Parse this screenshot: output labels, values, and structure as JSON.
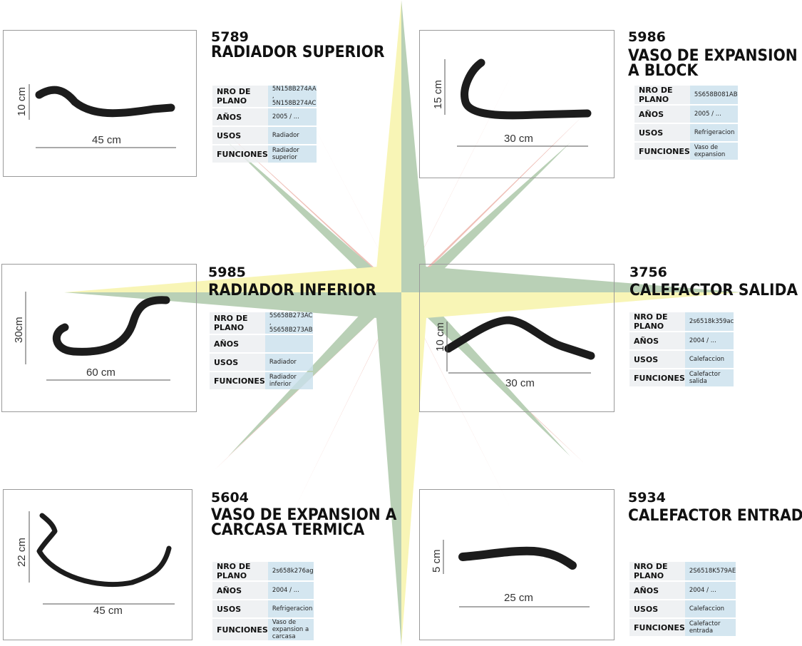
{
  "labels": {
    "plano": "NRO DE PLANO",
    "anios": "AÑOS",
    "usos": "USOS",
    "funciones": "FUNCIONES"
  },
  "products": [
    {
      "code": "5789",
      "title_lines": [
        "RADIADOR SUPERIOR"
      ],
      "dims": {
        "v": "10 cm",
        "h": "45 cm"
      },
      "nro_plano": "5N158B274AA , 5N158B274AC",
      "anios": "2005 / ...",
      "usos": "Radiador",
      "funciones": "Radiador superior"
    },
    {
      "code": "5986",
      "title_lines": [
        "VASO DE EXPANSION",
        "A  BLOCK"
      ],
      "dims": {
        "v": "15 cm",
        "h": "30 cm"
      },
      "nro_plano": "5S658B081AB",
      "anios": "2005 / ...",
      "usos": "Refrigeracion",
      "funciones": "Vaso de expansion"
    },
    {
      "code": "5985",
      "title_lines": [
        "RADIADOR INFERIOR"
      ],
      "dims": {
        "v": "30cm",
        "h": "60 cm"
      },
      "nro_plano": "5S658B273AC , 5S658B273AB",
      "anios": "",
      "usos": "Radiador",
      "funciones": "Radiador inferior"
    },
    {
      "code": "3756",
      "title_lines": [
        "CALEFACTOR SALIDA"
      ],
      "dims": {
        "v": "10 cm",
        "h": "30 cm"
      },
      "nro_plano": "2s6518k359ac",
      "anios": "2004 / ...",
      "usos": "Calefaccion",
      "funciones": "Calefactor salida"
    },
    {
      "code": "5604",
      "title_lines": [
        "VASO DE EXPANSION A",
        "CARCASA  TERMICA"
      ],
      "dims": {
        "v": "22 cm",
        "h": "45 cm"
      },
      "nro_plano": "2s658k276ag",
      "anios": "2004 / ...",
      "usos": "Refrigeracion",
      "funciones": "Vaso de expansion a carcasa"
    },
    {
      "code": "5934",
      "title_lines": [
        "CALEFACTOR ENTRADA"
      ],
      "dims": {
        "v": "5 cm",
        "h": "25 cm"
      },
      "nro_plano": "2S6518K579AE",
      "anios": "2004 / ...",
      "usos": "Calefaccion",
      "funciones": "Calefactor entrada"
    }
  ],
  "colors": {
    "hose": "#1c1c1c",
    "key_bg": "#eceef0",
    "value_bg": "#c9e0ec",
    "star_green": "#8fb48a",
    "star_yellow": "#f4f08a",
    "star_red": "#e6998c"
  }
}
